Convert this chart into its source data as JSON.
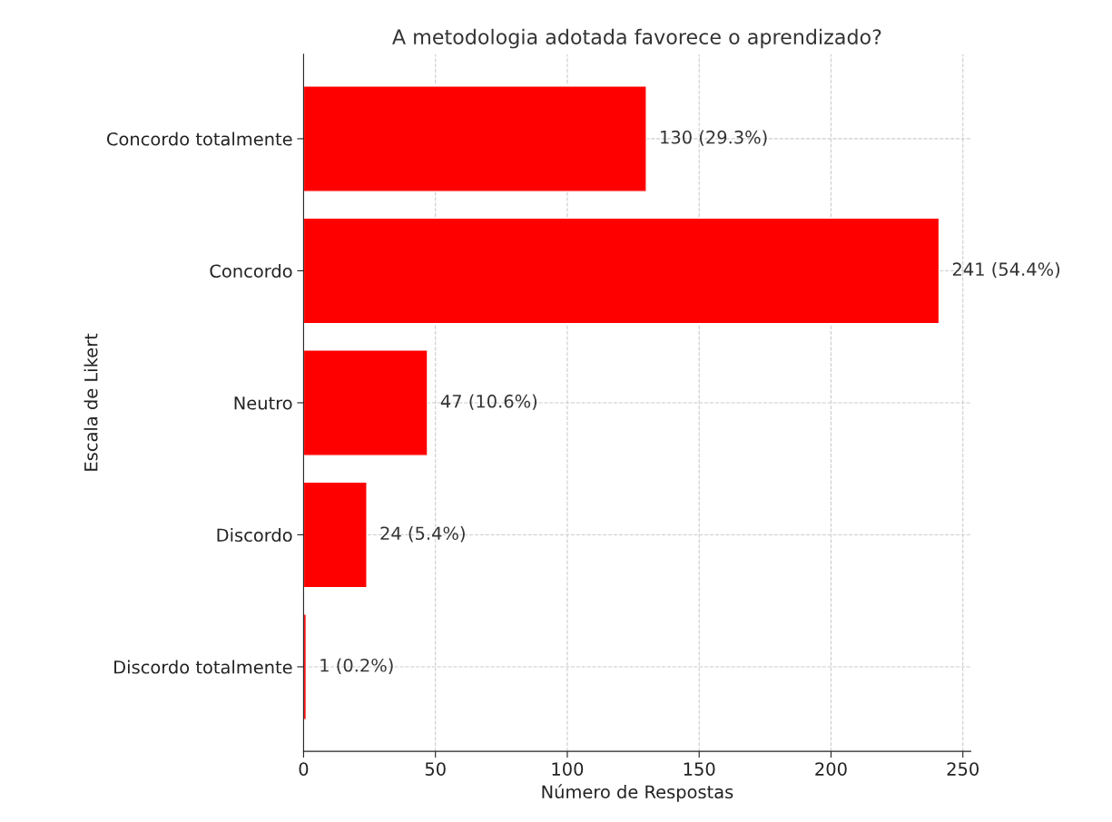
{
  "chart_data": {
    "type": "bar",
    "orientation": "horizontal",
    "title": "A metodologia adotada favorece o aprendizado?",
    "xlabel": "Número de Respostas",
    "ylabel": "Escala de Likert",
    "categories": [
      "Concordo totalmente",
      "Concordo",
      "Neutro",
      "Discordo",
      "Discordo totalmente"
    ],
    "values": [
      130,
      241,
      47,
      24,
      1
    ],
    "value_labels": [
      "130 (29.3%)",
      "241 (54.4%)",
      "47 (10.6%)",
      "24 (5.4%)",
      "1 (0.2%)"
    ],
    "color": "#ff0000",
    "xlim": [
      0,
      253
    ],
    "xticks": [
      0,
      50,
      100,
      150,
      200,
      250
    ],
    "grid": true
  }
}
